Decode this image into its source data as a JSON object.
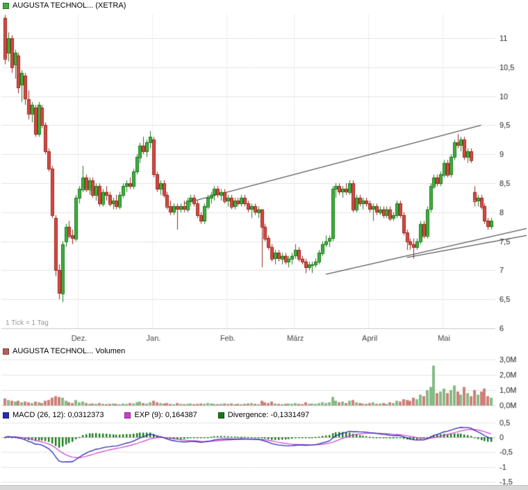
{
  "chart_data": {
    "main": {
      "type": "candlestick",
      "title": "AUGUSTA TECHNOL... (XETRA)",
      "tick_note": "1 Tick = 1 Tag",
      "interval": "1 day",
      "y_axis": {
        "values": [
          11,
          10.5,
          10,
          9.5,
          9,
          8.5,
          8,
          7.5,
          7,
          6.5,
          6
        ],
        "labels": [
          "11",
          "10,5",
          "10",
          "9,5",
          "9",
          "8,5",
          "8",
          "7,5",
          "7",
          "6,5",
          "6"
        ],
        "range": [
          6,
          11.6
        ]
      },
      "x_axis": {
        "labels": [
          "Dez.",
          "Jan.",
          "Feb.",
          "März",
          "April",
          "Mai"
        ],
        "month_start_indices": [
          22,
          44,
          66,
          86,
          108,
          130
        ]
      },
      "trendlines": [
        {
          "d1": 53,
          "p1": 8.15,
          "d2": 141,
          "p2": 9.5
        },
        {
          "d1": 95,
          "p1": 6.93,
          "d2": 155,
          "p2": 7.72
        },
        {
          "d1": 119,
          "p1": 7.22,
          "d2": 155,
          "p2": 7.6
        }
      ],
      "colors": {
        "up_fill": "#3fae3f",
        "up_stroke": "#1d7a1d",
        "down_fill": "#d24b43",
        "down_stroke": "#9c271f",
        "legend": "#3fae3f",
        "grid": "#e3e3e3",
        "grid_strong": "#c9c9c9",
        "vgrid": "#ededed",
        "axis_text": "#1a1a1a",
        "month_text": "#444444",
        "trendline": "#2a2a2a"
      },
      "candles": [
        [
          11.35,
          11.4,
          10.55,
          10.65
        ],
        [
          10.75,
          11.1,
          10.6,
          11.0
        ],
        [
          11.0,
          11.05,
          10.4,
          10.5
        ],
        [
          10.55,
          10.8,
          10.3,
          10.75
        ],
        [
          10.7,
          10.75,
          10.05,
          10.15
        ],
        [
          10.2,
          10.45,
          9.9,
          10.4
        ],
        [
          10.35,
          10.4,
          9.85,
          9.95
        ],
        [
          9.95,
          10.1,
          9.6,
          9.7
        ],
        [
          9.7,
          9.9,
          9.55,
          9.85
        ],
        [
          9.8,
          9.85,
          9.3,
          9.35
        ],
        [
          9.35,
          9.9,
          9.3,
          9.85
        ],
        [
          9.8,
          9.85,
          9.45,
          9.5
        ],
        [
          9.5,
          9.55,
          9.0,
          9.05
        ],
        [
          9.05,
          9.1,
          8.7,
          8.75
        ],
        [
          8.75,
          8.8,
          7.9,
          7.95
        ],
        [
          7.9,
          7.95,
          6.9,
          7.0
        ],
        [
          7.0,
          7.1,
          6.5,
          6.6
        ],
        [
          6.6,
          7.5,
          6.45,
          7.45
        ],
        [
          7.5,
          7.8,
          7.4,
          7.75
        ],
        [
          7.75,
          7.85,
          7.55,
          7.6
        ],
        [
          7.6,
          7.7,
          7.45,
          7.55
        ],
        [
          7.55,
          8.3,
          7.5,
          8.25
        ],
        [
          8.25,
          8.45,
          8.15,
          8.4
        ],
        [
          8.4,
          8.8,
          8.35,
          8.6
        ],
        [
          8.6,
          8.65,
          8.35,
          8.4
        ],
        [
          8.4,
          8.6,
          8.3,
          8.55
        ],
        [
          8.55,
          8.6,
          8.25,
          8.3
        ],
        [
          8.3,
          8.5,
          8.2,
          8.45
        ],
        [
          8.45,
          8.5,
          8.1,
          8.15
        ],
        [
          8.15,
          8.4,
          8.1,
          8.35
        ],
        [
          8.35,
          8.45,
          8.2,
          8.3
        ],
        [
          8.3,
          8.35,
          8.1,
          8.15
        ],
        [
          8.15,
          8.25,
          8.05,
          8.2
        ],
        [
          8.2,
          8.3,
          8.05,
          8.1
        ],
        [
          8.1,
          8.35,
          8.05,
          8.3
        ],
        [
          8.3,
          8.5,
          8.25,
          8.45
        ],
        [
          8.45,
          8.55,
          8.35,
          8.5
        ],
        [
          8.5,
          8.6,
          8.4,
          8.45
        ],
        [
          8.45,
          8.75,
          8.4,
          8.7
        ],
        [
          8.7,
          9.0,
          8.65,
          8.95
        ],
        [
          8.95,
          9.2,
          8.85,
          9.15
        ],
        [
          9.15,
          9.3,
          9.0,
          9.05
        ],
        [
          9.05,
          9.25,
          8.95,
          9.2
        ],
        [
          9.2,
          9.4,
          9.1,
          9.3
        ],
        [
          9.25,
          9.3,
          8.6,
          8.65
        ],
        [
          8.65,
          8.7,
          8.35,
          8.4
        ],
        [
          8.4,
          8.55,
          8.3,
          8.5
        ],
        [
          8.5,
          8.55,
          8.25,
          8.3
        ],
        [
          8.3,
          8.35,
          8.05,
          8.1
        ],
        [
          8.1,
          8.2,
          7.95,
          8.0
        ],
        [
          8.0,
          8.15,
          7.95,
          8.1
        ],
        [
          8.1,
          8.15,
          7.7,
          8.05
        ],
        [
          8.05,
          8.15,
          8.0,
          8.1
        ],
        [
          8.1,
          8.2,
          8.0,
          8.05
        ],
        [
          8.05,
          8.25,
          8.0,
          8.2
        ],
        [
          8.2,
          8.3,
          8.1,
          8.25
        ],
        [
          8.25,
          8.3,
          8.1,
          8.15
        ],
        [
          8.15,
          8.2,
          7.9,
          7.95
        ],
        [
          7.95,
          8.0,
          7.8,
          7.85
        ],
        [
          7.85,
          8.15,
          7.8,
          8.1
        ],
        [
          8.1,
          8.3,
          8.05,
          8.25
        ],
        [
          8.25,
          8.35,
          8.15,
          8.3
        ],
        [
          8.3,
          8.45,
          8.2,
          8.4
        ],
        [
          8.4,
          8.45,
          8.25,
          8.3
        ],
        [
          8.3,
          8.4,
          8.2,
          8.35
        ],
        [
          8.35,
          8.4,
          8.15,
          8.2
        ],
        [
          8.2,
          8.3,
          8.1,
          8.25
        ],
        [
          8.25,
          8.3,
          8.05,
          8.1
        ],
        [
          8.1,
          8.25,
          8.05,
          8.2
        ],
        [
          8.2,
          8.25,
          8.1,
          8.15
        ],
        [
          8.15,
          8.3,
          8.1,
          8.25
        ],
        [
          8.25,
          8.3,
          8.1,
          8.15
        ],
        [
          8.15,
          8.2,
          8.0,
          8.05
        ],
        [
          8.05,
          8.15,
          7.9,
          8.1
        ],
        [
          8.1,
          8.15,
          7.95,
          8.0
        ],
        [
          8.0,
          8.1,
          7.9,
          8.05
        ],
        [
          8.05,
          8.05,
          7.05,
          7.75
        ],
        [
          7.75,
          7.8,
          7.5,
          7.55
        ],
        [
          7.55,
          7.6,
          7.35,
          7.4
        ],
        [
          7.4,
          7.45,
          7.15,
          7.2
        ],
        [
          7.2,
          7.35,
          7.1,
          7.3
        ],
        [
          7.3,
          7.35,
          7.15,
          7.2
        ],
        [
          7.2,
          7.3,
          7.1,
          7.25
        ],
        [
          7.25,
          7.3,
          7.1,
          7.15
        ],
        [
          7.15,
          7.25,
          7.05,
          7.2
        ],
        [
          7.2,
          7.3,
          7.1,
          7.25
        ],
        [
          7.25,
          7.45,
          7.2,
          7.35
        ],
        [
          7.35,
          7.4,
          7.15,
          7.2
        ],
        [
          7.2,
          7.25,
          7.1,
          7.15
        ],
        [
          7.15,
          7.2,
          6.95,
          7.05
        ],
        [
          7.05,
          7.15,
          7.0,
          7.1
        ],
        [
          7.1,
          7.15,
          6.95,
          7.1
        ],
        [
          7.1,
          7.2,
          7.05,
          7.15
        ],
        [
          7.15,
          7.35,
          7.1,
          7.3
        ],
        [
          7.3,
          7.5,
          7.25,
          7.45
        ],
        [
          7.45,
          7.6,
          7.4,
          7.5
        ],
        [
          7.5,
          7.6,
          7.4,
          7.55
        ],
        [
          7.55,
          8.45,
          7.5,
          8.4
        ],
        [
          8.4,
          8.5,
          8.25,
          8.45
        ],
        [
          8.45,
          8.5,
          8.3,
          8.35
        ],
        [
          8.35,
          8.45,
          8.25,
          8.4
        ],
        [
          8.4,
          8.5,
          8.3,
          8.35
        ],
        [
          8.35,
          8.55,
          8.3,
          8.5
        ],
        [
          8.5,
          8.55,
          8.0,
          8.05
        ],
        [
          8.05,
          8.3,
          8.0,
          8.25
        ],
        [
          8.25,
          8.3,
          8.1,
          8.15
        ],
        [
          8.15,
          8.25,
          8.05,
          8.2
        ],
        [
          8.2,
          8.25,
          8.1,
          8.15
        ],
        [
          8.15,
          8.2,
          8.0,
          8.05
        ],
        [
          8.05,
          8.15,
          7.85,
          8.1
        ],
        [
          8.1,
          8.15,
          7.95,
          8.0
        ],
        [
          8.0,
          8.1,
          7.95,
          8.05
        ],
        [
          8.05,
          8.1,
          7.9,
          7.95
        ],
        [
          7.95,
          8.1,
          7.9,
          8.05
        ],
        [
          8.05,
          8.1,
          7.85,
          7.9
        ],
        [
          7.9,
          8.0,
          7.85,
          7.95
        ],
        [
          7.95,
          8.2,
          7.9,
          8.15
        ],
        [
          8.15,
          8.2,
          7.9,
          7.95
        ],
        [
          7.95,
          8.0,
          7.6,
          7.65
        ],
        [
          7.65,
          7.7,
          7.35,
          7.5
        ],
        [
          7.5,
          7.55,
          7.35,
          7.45
        ],
        [
          7.45,
          7.55,
          7.2,
          7.4
        ],
        [
          7.4,
          7.55,
          7.35,
          7.5
        ],
        [
          7.5,
          7.85,
          7.45,
          7.8
        ],
        [
          7.8,
          7.85,
          7.55,
          7.6
        ],
        [
          7.6,
          8.1,
          7.55,
          8.05
        ],
        [
          8.05,
          8.5,
          8.0,
          8.45
        ],
        [
          8.45,
          8.65,
          8.4,
          8.6
        ],
        [
          8.6,
          8.65,
          8.45,
          8.5
        ],
        [
          8.5,
          8.7,
          8.45,
          8.65
        ],
        [
          8.65,
          8.9,
          8.6,
          8.85
        ],
        [
          8.85,
          8.9,
          8.6,
          8.65
        ],
        [
          8.65,
          9.0,
          8.6,
          8.95
        ],
        [
          8.95,
          9.25,
          8.9,
          9.2
        ],
        [
          9.2,
          9.35,
          9.1,
          9.15
        ],
        [
          9.15,
          9.3,
          9.05,
          9.25
        ],
        [
          9.25,
          9.3,
          8.9,
          8.95
        ],
        [
          8.95,
          9.1,
          8.85,
          9.05
        ],
        [
          9.05,
          9.1,
          8.85,
          8.9
        ],
        [
          8.35,
          8.45,
          8.1,
          8.2
        ],
        [
          8.2,
          8.3,
          8.1,
          8.25
        ],
        [
          8.25,
          8.3,
          8.05,
          8.1
        ],
        [
          8.1,
          8.15,
          7.8,
          7.85
        ],
        [
          7.85,
          7.9,
          7.7,
          7.75
        ],
        [
          7.75,
          7.9,
          7.7,
          7.85
        ]
      ]
    },
    "volume": {
      "type": "bar",
      "legend": "AUGUSTA TECHNOL... Volumen",
      "y_axis": {
        "values": [
          3,
          2,
          1,
          0
        ],
        "labels": [
          "3,0M",
          "2,0M",
          "1,0M",
          "0,0M"
        ]
      },
      "colors": {
        "up": "#85bb85",
        "down": "#cd8078",
        "neutral": "#ababab",
        "legend": "#b4625c",
        "grid": "#e3e3e3",
        "baseline": "#c9c9c9"
      },
      "values_millions": [
        0.45,
        0.35,
        0.3,
        0.25,
        0.3,
        0.2,
        0.25,
        0.2,
        0.15,
        0.25,
        0.2,
        0.15,
        0.3,
        0.35,
        0.5,
        0.6,
        0.55,
        0.5,
        0.3,
        0.2,
        0.15,
        0.35,
        0.2,
        0.25,
        0.15,
        0.1,
        0.12,
        0.1,
        0.15,
        0.1,
        0.08,
        0.1,
        0.12,
        0.1,
        0.08,
        0.12,
        0.1,
        0.15,
        0.12,
        0.2,
        0.25,
        0.15,
        0.12,
        0.2,
        0.3,
        0.2,
        0.15,
        0.12,
        0.15,
        0.1,
        0.08,
        0.15,
        0.1,
        0.08,
        0.1,
        0.12,
        0.08,
        0.1,
        0.12,
        0.1,
        0.15,
        0.12,
        0.1,
        0.08,
        0.1,
        0.12,
        0.1,
        0.12,
        0.08,
        0.1,
        0.08,
        0.1,
        0.12,
        0.15,
        0.1,
        0.08,
        0.3,
        0.2,
        0.15,
        0.25,
        0.12,
        0.1,
        0.08,
        0.1,
        0.12,
        0.1,
        0.15,
        0.1,
        0.08,
        0.2,
        0.1,
        0.12,
        0.1,
        0.15,
        0.2,
        0.15,
        0.2,
        0.55,
        0.3,
        0.2,
        0.25,
        0.15,
        0.3,
        0.35,
        0.2,
        0.15,
        0.12,
        0.1,
        0.15,
        0.2,
        0.1,
        0.12,
        0.15,
        0.1,
        0.2,
        0.15,
        0.3,
        0.25,
        0.4,
        0.35,
        0.3,
        0.5,
        0.4,
        0.7,
        0.6,
        1.0,
        1.2,
        2.6,
        0.8,
        0.9,
        1.1,
        0.8,
        1.0,
        1.3,
        0.9,
        0.7,
        1.2,
        0.8,
        0.6,
        1.0,
        0.7,
        0.9,
        1.1,
        0.6,
        0.5
      ]
    },
    "macd": {
      "type": "line",
      "legend_macd": "MACD (26, 12): 0,0312373",
      "legend_exp": "EXP (9): 0,164387",
      "legend_divergence": "Divergence: -0,1331497",
      "params": {
        "slow": 26,
        "fast": 12,
        "signal": 9
      },
      "values": {
        "macd": 0.0312373,
        "exp": 0.164387,
        "divergence": -0.1331497
      },
      "y_axis": {
        "values": [
          0.5,
          0,
          -0.5,
          -1,
          -1.5
        ],
        "labels": [
          "0,5",
          "0",
          "-0,5",
          "-1",
          "-1,5"
        ]
      },
      "colors": {
        "macd": "#2b2bb8",
        "exp": "#cd3ecd",
        "divergence": "#157a15",
        "grid": "#e3e3e3",
        "zero": "#bdbdbd"
      }
    }
  }
}
